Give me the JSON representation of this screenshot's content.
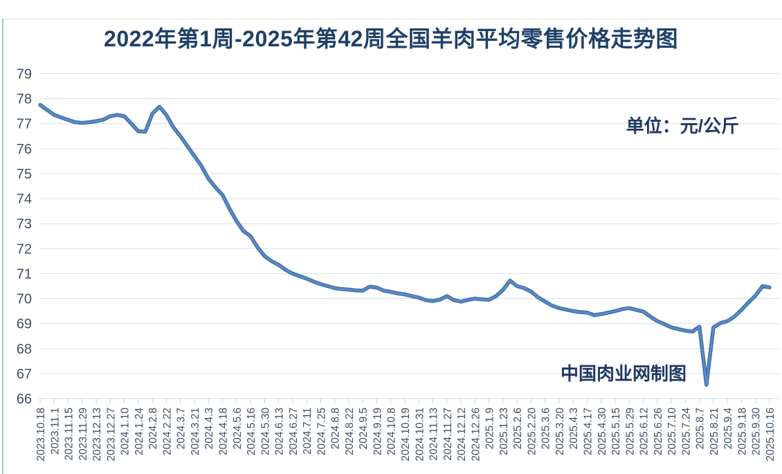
{
  "chart": {
    "title": "2022年第1周-2025年第42周全国羊肉平均零售价格走势图",
    "unit_label": "单位：元/公斤",
    "watermark": "中国肉业网制图"
  },
  "chart_data": {
    "type": "line",
    "title": "2022年第1周-2025年第42周全国羊肉平均零售价格走势图",
    "series_name": "全国羊肉平均零售价格",
    "unit": "元/公斤",
    "xlabel": "",
    "ylabel": "",
    "ylim": [
      66,
      79
    ],
    "y_step": 1,
    "grid": true,
    "legend": "none",
    "values_per_label": 2,
    "categories": [
      "2023.10.18",
      "2023.11.1",
      "2023.11.15",
      "2023.11.29",
      "2023.12.13",
      "2023.12.27",
      "2024.1.10",
      "2024.1.24",
      "2024.2.8",
      "2024.2.22",
      "2024.3.7",
      "2024.3.21",
      "2024.4.3",
      "2024.4.18",
      "2024.5.6",
      "2024.5.16",
      "2024.5.30",
      "2024.6.13",
      "2024.6.27",
      "2024.7.11",
      "2024.7.25",
      "2024.8.8",
      "2024.8.22",
      "2024.9.5",
      "2024.9.19",
      "2024.10.8",
      "2024.10.19",
      "2024.10.31",
      "2024.11.13",
      "2024.11.27",
      "2024.12.12",
      "2024.12.26",
      "2025.1.9",
      "2025.1.23",
      "2025.2.6",
      "2025.2.20",
      "2025.3.6",
      "2025.3.20",
      "2025.4.3",
      "2025.4.17",
      "2025.4.30",
      "2025.5.15",
      "2025.5.29",
      "2025.6.12",
      "2025.6.26",
      "2025.7.10",
      "2025.7.24",
      "2025.8.7",
      "2025.8.21",
      "2025.9.4",
      "2025.9.18",
      "2025.9.30",
      "2025.10.16"
    ],
    "values": [
      77.75,
      77.55,
      77.35,
      77.25,
      77.15,
      77.06,
      77.03,
      77.06,
      77.1,
      77.16,
      77.3,
      77.35,
      77.3,
      77.0,
      76.7,
      76.68,
      77.4,
      77.68,
      77.35,
      76.85,
      76.5,
      76.1,
      75.7,
      75.3,
      74.8,
      74.45,
      74.15,
      73.6,
      73.1,
      72.7,
      72.5,
      72.05,
      71.7,
      71.5,
      71.35,
      71.15,
      71.0,
      70.9,
      70.8,
      70.68,
      70.58,
      70.5,
      70.42,
      70.38,
      70.36,
      70.33,
      70.32,
      70.48,
      70.44,
      70.32,
      70.27,
      70.21,
      70.17,
      70.1,
      70.04,
      69.94,
      69.9,
      69.96,
      70.1,
      69.94,
      69.88,
      69.95,
      70.0,
      69.97,
      69.95,
      70.1,
      70.35,
      70.72,
      70.5,
      70.42,
      70.28,
      70.05,
      69.88,
      69.72,
      69.62,
      69.56,
      69.5,
      69.46,
      69.44,
      69.34,
      69.38,
      69.44,
      69.5,
      69.58,
      69.62,
      69.55,
      69.48,
      69.28,
      69.1,
      68.98,
      68.85,
      68.78,
      68.72,
      68.68,
      68.88,
      66.55,
      68.85,
      69.02,
      69.1,
      69.28,
      69.55,
      69.85,
      70.12,
      70.5,
      70.45
    ],
    "colors": {
      "line": "#5a8bc6",
      "line_edge": "#3a68a2",
      "grid": "#d7dfea",
      "axis": "#c7d3e2",
      "tick": "#c3cfdf",
      "axis_text": "#3e4e66",
      "title_text": "#1f4068"
    }
  }
}
